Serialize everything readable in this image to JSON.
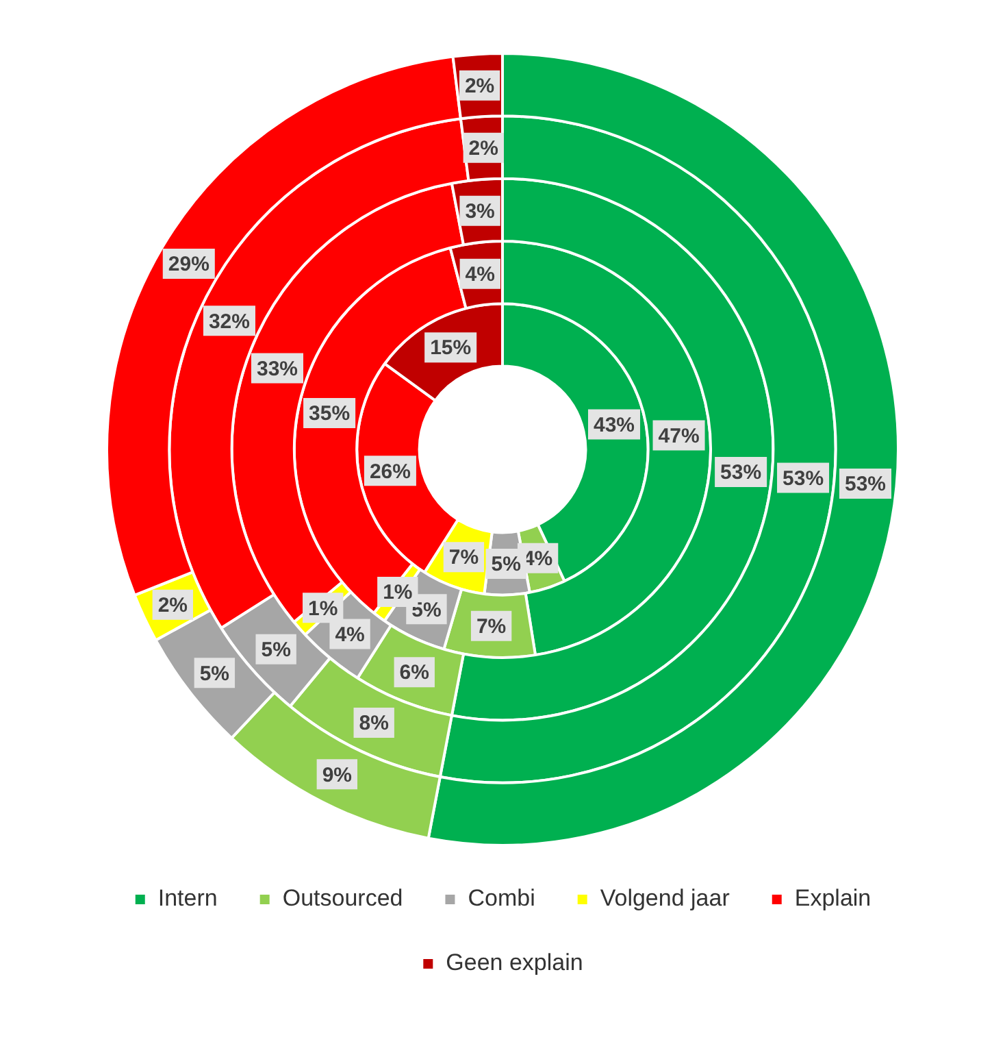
{
  "chart_data": {
    "type": "donut",
    "categories": [
      "Intern",
      "Outsourced",
      "Combi",
      "Volgend jaar",
      "Explain",
      "Geen explain"
    ],
    "colors": [
      "#00b050",
      "#92d050",
      "#a6a6a6",
      "#ffff00",
      "#ff0000",
      "#c00000"
    ],
    "legend": "bottom",
    "series": [
      {
        "values": [
          53,
          9,
          5,
          2,
          29,
          2
        ],
        "value_labels": [
          "53%",
          "9%",
          "5%",
          "2%",
          "29%",
          "2%"
        ]
      },
      {
        "values": [
          53,
          8,
          5,
          null,
          32,
          2
        ],
        "value_labels": [
          "53%",
          "8%",
          "5%",
          null,
          "32%",
          "2%"
        ]
      },
      {
        "values": [
          53,
          6,
          4,
          1,
          33,
          3
        ],
        "value_labels": [
          "53%",
          "6%",
          "4%",
          "1%",
          "33%",
          "3%"
        ]
      },
      {
        "values": [
          47,
          7,
          5,
          1,
          35,
          4
        ],
        "value_labels": [
          "47%",
          "7%",
          "5%",
          "1%",
          "35%",
          "4%"
        ]
      },
      {
        "values": [
          43,
          4,
          5,
          7,
          26,
          15
        ],
        "value_labels": [
          "43%",
          "4%",
          "5%",
          "7%",
          "26%",
          "15%"
        ]
      }
    ]
  }
}
